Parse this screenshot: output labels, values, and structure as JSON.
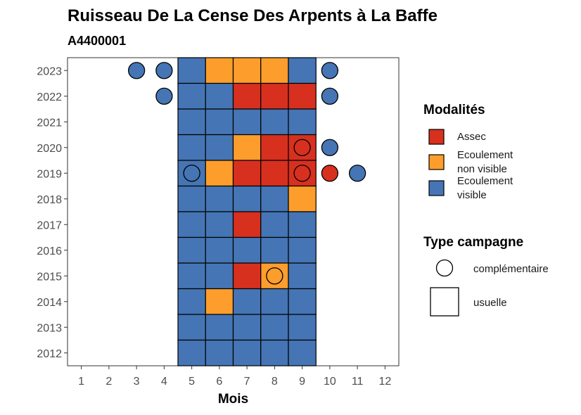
{
  "chart_data": {
    "type": "heatmap",
    "title": "Ruisseau De La Cense Des Arpents à La Baffe",
    "subtitle": "A4400001",
    "xlabel": "Mois",
    "ylabel": "",
    "x_ticks": [
      1,
      2,
      3,
      4,
      5,
      6,
      7,
      8,
      9,
      10,
      11,
      12
    ],
    "y_ticks": [
      2012,
      2013,
      2014,
      2015,
      2016,
      2017,
      2018,
      2019,
      2020,
      2021,
      2022,
      2023
    ],
    "xlim": [
      0.5,
      12.5
    ],
    "ylim": [
      2011.5,
      2023.5
    ],
    "grid": false,
    "colors": {
      "Assec": "#d7301f",
      "Ecoulement non visible": "#fd9e2c",
      "Ecoulement visible": "#4575b4"
    },
    "legend_modalites": {
      "title": "Modalités",
      "items": [
        {
          "key": "Assec",
          "lines": [
            "Assec"
          ]
        },
        {
          "key": "Ecoulement non visible",
          "lines": [
            "Ecoulement",
            "non visible"
          ]
        },
        {
          "key": "Ecoulement visible",
          "lines": [
            "Ecoulement",
            "visible"
          ]
        }
      ]
    },
    "legend_type": {
      "title": "Type campagne",
      "items": [
        {
          "shape": "circle",
          "label": "complémentaire"
        },
        {
          "shape": "square",
          "label": "usuelle"
        }
      ]
    },
    "usuelle": [
      {
        "year": 2023,
        "month": 5,
        "modalite": "Ecoulement visible"
      },
      {
        "year": 2023,
        "month": 6,
        "modalite": "Ecoulement non visible"
      },
      {
        "year": 2023,
        "month": 7,
        "modalite": "Ecoulement non visible"
      },
      {
        "year": 2023,
        "month": 8,
        "modalite": "Ecoulement non visible"
      },
      {
        "year": 2023,
        "month": 9,
        "modalite": "Ecoulement visible"
      },
      {
        "year": 2022,
        "month": 5,
        "modalite": "Ecoulement visible"
      },
      {
        "year": 2022,
        "month": 6,
        "modalite": "Ecoulement visible"
      },
      {
        "year": 2022,
        "month": 7,
        "modalite": "Assec"
      },
      {
        "year": 2022,
        "month": 8,
        "modalite": "Assec"
      },
      {
        "year": 2022,
        "month": 9,
        "modalite": "Assec"
      },
      {
        "year": 2021,
        "month": 5,
        "modalite": "Ecoulement visible"
      },
      {
        "year": 2021,
        "month": 6,
        "modalite": "Ecoulement visible"
      },
      {
        "year": 2021,
        "month": 7,
        "modalite": "Ecoulement visible"
      },
      {
        "year": 2021,
        "month": 8,
        "modalite": "Ecoulement visible"
      },
      {
        "year": 2021,
        "month": 9,
        "modalite": "Ecoulement visible"
      },
      {
        "year": 2020,
        "month": 5,
        "modalite": "Ecoulement visible"
      },
      {
        "year": 2020,
        "month": 6,
        "modalite": "Ecoulement visible"
      },
      {
        "year": 2020,
        "month": 7,
        "modalite": "Ecoulement non visible"
      },
      {
        "year": 2020,
        "month": 8,
        "modalite": "Assec"
      },
      {
        "year": 2020,
        "month": 9,
        "modalite": "Assec"
      },
      {
        "year": 2019,
        "month": 5,
        "modalite": "Ecoulement visible"
      },
      {
        "year": 2019,
        "month": 6,
        "modalite": "Ecoulement non visible"
      },
      {
        "year": 2019,
        "month": 7,
        "modalite": "Assec"
      },
      {
        "year": 2019,
        "month": 8,
        "modalite": "Assec"
      },
      {
        "year": 2019,
        "month": 9,
        "modalite": "Assec"
      },
      {
        "year": 2018,
        "month": 5,
        "modalite": "Ecoulement visible"
      },
      {
        "year": 2018,
        "month": 6,
        "modalite": "Ecoulement visible"
      },
      {
        "year": 2018,
        "month": 7,
        "modalite": "Ecoulement visible"
      },
      {
        "year": 2018,
        "month": 8,
        "modalite": "Ecoulement visible"
      },
      {
        "year": 2018,
        "month": 9,
        "modalite": "Ecoulement non visible"
      },
      {
        "year": 2017,
        "month": 5,
        "modalite": "Ecoulement visible"
      },
      {
        "year": 2017,
        "month": 6,
        "modalite": "Ecoulement visible"
      },
      {
        "year": 2017,
        "month": 7,
        "modalite": "Assec"
      },
      {
        "year": 2017,
        "month": 8,
        "modalite": "Ecoulement visible"
      },
      {
        "year": 2017,
        "month": 9,
        "modalite": "Ecoulement visible"
      },
      {
        "year": 2016,
        "month": 5,
        "modalite": "Ecoulement visible"
      },
      {
        "year": 2016,
        "month": 6,
        "modalite": "Ecoulement visible"
      },
      {
        "year": 2016,
        "month": 7,
        "modalite": "Ecoulement visible"
      },
      {
        "year": 2016,
        "month": 8,
        "modalite": "Ecoulement visible"
      },
      {
        "year": 2016,
        "month": 9,
        "modalite": "Ecoulement visible"
      },
      {
        "year": 2015,
        "month": 5,
        "modalite": "Ecoulement visible"
      },
      {
        "year": 2015,
        "month": 6,
        "modalite": "Ecoulement visible"
      },
      {
        "year": 2015,
        "month": 7,
        "modalite": "Assec"
      },
      {
        "year": 2015,
        "month": 8,
        "modalite": "Ecoulement non visible"
      },
      {
        "year": 2015,
        "month": 9,
        "modalite": "Ecoulement visible"
      },
      {
        "year": 2014,
        "month": 5,
        "modalite": "Ecoulement visible"
      },
      {
        "year": 2014,
        "month": 6,
        "modalite": "Ecoulement non visible"
      },
      {
        "year": 2014,
        "month": 7,
        "modalite": "Ecoulement visible"
      },
      {
        "year": 2014,
        "month": 8,
        "modalite": "Ecoulement visible"
      },
      {
        "year": 2014,
        "month": 9,
        "modalite": "Ecoulement visible"
      },
      {
        "year": 2013,
        "month": 5,
        "modalite": "Ecoulement visible"
      },
      {
        "year": 2013,
        "month": 6,
        "modalite": "Ecoulement visible"
      },
      {
        "year": 2013,
        "month": 7,
        "modalite": "Ecoulement visible"
      },
      {
        "year": 2013,
        "month": 8,
        "modalite": "Ecoulement visible"
      },
      {
        "year": 2013,
        "month": 9,
        "modalite": "Ecoulement visible"
      },
      {
        "year": 2012,
        "month": 5,
        "modalite": "Ecoulement visible"
      },
      {
        "year": 2012,
        "month": 6,
        "modalite": "Ecoulement visible"
      },
      {
        "year": 2012,
        "month": 7,
        "modalite": "Ecoulement visible"
      },
      {
        "year": 2012,
        "month": 8,
        "modalite": "Ecoulement visible"
      },
      {
        "year": 2012,
        "month": 9,
        "modalite": "Ecoulement visible"
      }
    ],
    "complementaire": [
      {
        "year": 2023,
        "month": 3,
        "modalite": "Ecoulement visible"
      },
      {
        "year": 2023,
        "month": 4,
        "modalite": "Ecoulement visible"
      },
      {
        "year": 2023,
        "month": 10,
        "modalite": "Ecoulement visible"
      },
      {
        "year": 2022,
        "month": 4,
        "modalite": "Ecoulement visible"
      },
      {
        "year": 2022,
        "month": 10,
        "modalite": "Ecoulement visible"
      },
      {
        "year": 2020,
        "month": 9,
        "modalite": "Assec"
      },
      {
        "year": 2020,
        "month": 10,
        "modalite": "Ecoulement visible"
      },
      {
        "year": 2019,
        "month": 5,
        "modalite": "Ecoulement visible"
      },
      {
        "year": 2019,
        "month": 9,
        "modalite": "Assec"
      },
      {
        "year": 2019,
        "month": 10,
        "modalite": "Assec"
      },
      {
        "year": 2019,
        "month": 11,
        "modalite": "Ecoulement visible"
      },
      {
        "year": 2015,
        "month": 8,
        "modalite": "Ecoulement non visible"
      }
    ]
  }
}
